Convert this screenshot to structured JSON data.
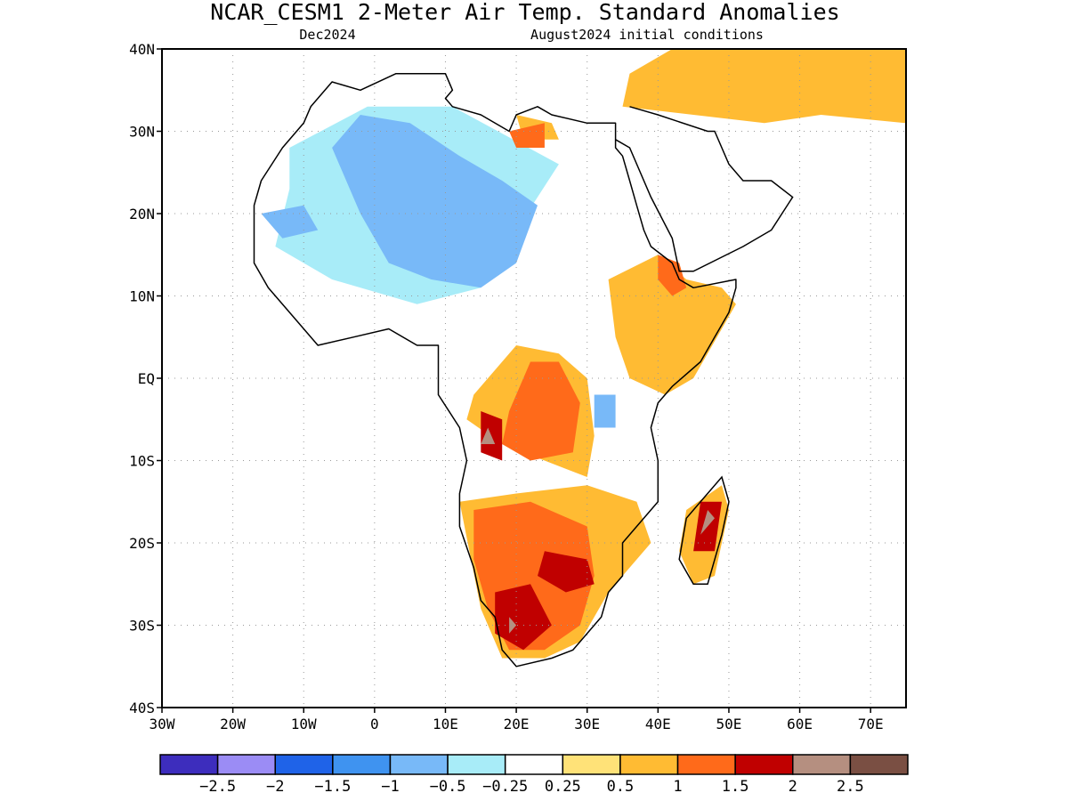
{
  "header": {
    "title": "NCAR_CESM1 2-Meter Air Temp. Standard Anomalies",
    "target_month": "Dec2024",
    "init_conditions": "August2024 initial conditions"
  },
  "map": {
    "extent": {
      "lon": [
        -30,
        75
      ],
      "lat": [
        -40,
        40
      ]
    },
    "lat_ticks": [
      {
        "v": 40,
        "label": "40N"
      },
      {
        "v": 30,
        "label": "30N"
      },
      {
        "v": 20,
        "label": "20N"
      },
      {
        "v": 10,
        "label": "10N"
      },
      {
        "v": 0,
        "label": "EQ"
      },
      {
        "v": -10,
        "label": "10S"
      },
      {
        "v": -20,
        "label": "20S"
      },
      {
        "v": -30,
        "label": "30S"
      },
      {
        "v": -40,
        "label": "40S"
      }
    ],
    "lon_ticks": [
      {
        "v": -30,
        "label": "30W"
      },
      {
        "v": -20,
        "label": "20W"
      },
      {
        "v": -10,
        "label": "10W"
      },
      {
        "v": 0,
        "label": "0"
      },
      {
        "v": 10,
        "label": "10E"
      },
      {
        "v": 20,
        "label": "20E"
      },
      {
        "v": 30,
        "label": "30E"
      },
      {
        "v": 40,
        "label": "40E"
      },
      {
        "v": 50,
        "label": "50E"
      },
      {
        "v": 60,
        "label": "60E"
      },
      {
        "v": 70,
        "label": "70E"
      }
    ],
    "gridlines": "dotted",
    "regions": [
      {
        "category": 5,
        "color": "#a8ecf8",
        "poly": [
          [
            -12,
            28
          ],
          [
            -1,
            33
          ],
          [
            11,
            33
          ],
          [
            26,
            26
          ],
          [
            20,
            18
          ],
          [
            15,
            11
          ],
          [
            6,
            9
          ],
          [
            -6,
            12
          ],
          [
            -14,
            16
          ],
          [
            -12,
            23
          ]
        ]
      },
      {
        "category": 4,
        "color": "#78b9f8",
        "poly": [
          [
            -6,
            28
          ],
          [
            -2,
            32
          ],
          [
            5,
            31
          ],
          [
            12,
            27
          ],
          [
            18,
            24
          ],
          [
            23,
            21
          ],
          [
            20,
            14
          ],
          [
            15,
            11
          ],
          [
            8,
            12
          ],
          [
            2,
            14
          ],
          [
            -2,
            20
          ]
        ]
      },
      {
        "category": 4,
        "color": "#78b9f8",
        "poly": [
          [
            -16,
            20
          ],
          [
            -10,
            21
          ],
          [
            -8,
            18
          ],
          [
            -13,
            17
          ]
        ]
      },
      {
        "category": 4,
        "color": "#78b9f8",
        "poly": [
          [
            31,
            -2
          ],
          [
            34,
            -2
          ],
          [
            34,
            -6
          ],
          [
            31,
            -6
          ]
        ]
      },
      {
        "category": 8,
        "color": "#ffbb33",
        "poly": [
          [
            14,
            -2
          ],
          [
            20,
            4
          ],
          [
            26,
            3
          ],
          [
            30,
            0
          ],
          [
            31,
            -7
          ],
          [
            30,
            -12
          ],
          [
            24,
            -10
          ],
          [
            18,
            -8
          ],
          [
            13,
            -5
          ]
        ]
      },
      {
        "category": 8,
        "color": "#ffbb33",
        "poly": [
          [
            33,
            12
          ],
          [
            40,
            15
          ],
          [
            44,
            12
          ],
          [
            49,
            11
          ],
          [
            51,
            9
          ],
          [
            45,
            0
          ],
          [
            41,
            -2
          ],
          [
            36,
            0
          ],
          [
            34,
            5
          ]
        ]
      },
      {
        "category": 8,
        "color": "#ffbb33",
        "poly": [
          [
            12,
            -15
          ],
          [
            20,
            -14
          ],
          [
            30,
            -13
          ],
          [
            37,
            -15
          ],
          [
            39,
            -20
          ],
          [
            33,
            -26
          ],
          [
            29,
            -32
          ],
          [
            24,
            -34
          ],
          [
            18,
            -34
          ],
          [
            15,
            -28
          ]
        ]
      },
      {
        "category": 8,
        "color": "#ffbb33",
        "poly": [
          [
            44,
            -16
          ],
          [
            49,
            -13
          ],
          [
            50,
            -16
          ],
          [
            48,
            -24
          ],
          [
            45,
            -25
          ],
          [
            43,
            -21
          ]
        ]
      },
      {
        "category": 8,
        "color": "#ffbb33",
        "poly": [
          [
            35,
            33
          ],
          [
            45,
            32
          ],
          [
            55,
            31
          ],
          [
            63,
            32
          ],
          [
            75,
            31
          ],
          [
            75,
            40
          ],
          [
            55,
            40
          ],
          [
            42,
            40
          ],
          [
            36,
            37
          ]
        ]
      },
      {
        "category": 8,
        "color": "#ffbb33",
        "poly": [
          [
            20,
            32
          ],
          [
            25,
            31
          ],
          [
            26,
            29
          ],
          [
            21,
            29
          ]
        ]
      },
      {
        "category": 9,
        "color": "#ff6a1a",
        "poly": [
          [
            19,
            -4
          ],
          [
            22,
            2
          ],
          [
            26,
            2
          ],
          [
            29,
            -3
          ],
          [
            28,
            -9
          ],
          [
            22,
            -10
          ],
          [
            18,
            -8
          ]
        ]
      },
      {
        "category": 9,
        "color": "#ff6a1a",
        "poly": [
          [
            14,
            -16
          ],
          [
            22,
            -15
          ],
          [
            30,
            -18
          ],
          [
            31,
            -24
          ],
          [
            29,
            -30
          ],
          [
            24,
            -33
          ],
          [
            19,
            -33
          ],
          [
            16,
            -28
          ],
          [
            14,
            -22
          ]
        ]
      },
      {
        "category": 9,
        "color": "#ff6a1a",
        "poly": [
          [
            40,
            15
          ],
          [
            43,
            14
          ],
          [
            44,
            11
          ],
          [
            42,
            10
          ],
          [
            40,
            12
          ]
        ]
      },
      {
        "category": 9,
        "color": "#ff6a1a",
        "poly": [
          [
            19,
            30
          ],
          [
            24,
            31
          ],
          [
            24,
            28
          ],
          [
            20,
            28
          ]
        ]
      },
      {
        "category": 10,
        "color": "#c00000",
        "poly": [
          [
            15,
            -4
          ],
          [
            18,
            -5
          ],
          [
            18,
            -10
          ],
          [
            15,
            -9
          ]
        ]
      },
      {
        "category": 10,
        "color": "#c00000",
        "poly": [
          [
            17,
            -26
          ],
          [
            22,
            -25
          ],
          [
            25,
            -30
          ],
          [
            21,
            -33
          ],
          [
            17,
            -31
          ]
        ]
      },
      {
        "category": 10,
        "color": "#c00000",
        "poly": [
          [
            24,
            -21
          ],
          [
            30,
            -22
          ],
          [
            31,
            -25
          ],
          [
            27,
            -26
          ],
          [
            23,
            -24
          ]
        ]
      },
      {
        "category": 10,
        "color": "#c00000",
        "poly": [
          [
            46,
            -15
          ],
          [
            49,
            -15
          ],
          [
            48,
            -21
          ],
          [
            45,
            -21
          ]
        ]
      },
      {
        "category": 11,
        "color": "#b58f80",
        "poly": [
          [
            16,
            -6
          ],
          [
            17,
            -8
          ],
          [
            15,
            -8
          ]
        ]
      },
      {
        "category": 11,
        "color": "#b58f80",
        "poly": [
          [
            47,
            -16
          ],
          [
            48,
            -17
          ],
          [
            46,
            -19
          ]
        ]
      },
      {
        "category": 11,
        "color": "#b58f80",
        "poly": [
          [
            19,
            -29
          ],
          [
            20,
            -30
          ],
          [
            19,
            -31
          ]
        ]
      }
    ],
    "coastline": [
      [
        -13,
        28
      ],
      [
        -10,
        31
      ],
      [
        -9,
        33
      ],
      [
        -6,
        36
      ],
      [
        -2,
        35
      ],
      [
        3,
        37
      ],
      [
        10,
        37
      ],
      [
        11,
        35
      ],
      [
        10,
        34
      ],
      [
        11,
        33
      ],
      [
        15,
        32
      ],
      [
        19,
        30
      ],
      [
        20,
        32
      ],
      [
        23,
        33
      ],
      [
        25,
        32
      ],
      [
        30,
        31
      ],
      [
        32,
        31
      ],
      [
        34,
        31
      ],
      [
        34,
        28
      ],
      [
        35,
        27
      ],
      [
        36,
        24
      ],
      [
        37,
        21
      ],
      [
        38,
        18
      ],
      [
        39,
        16
      ],
      [
        42,
        14
      ],
      [
        43,
        12
      ],
      [
        45,
        11
      ],
      [
        51,
        12
      ],
      [
        51,
        11
      ],
      [
        50,
        8
      ],
      [
        48,
        5
      ],
      [
        46,
        2
      ],
      [
        42,
        -1
      ],
      [
        40,
        -3
      ],
      [
        39,
        -6
      ],
      [
        40,
        -10
      ],
      [
        40,
        -15
      ],
      [
        37,
        -18
      ],
      [
        35,
        -20
      ],
      [
        35,
        -24
      ],
      [
        33,
        -26
      ],
      [
        32,
        -29
      ],
      [
        30,
        -31
      ],
      [
        28,
        -33
      ],
      [
        25,
        -34
      ],
      [
        20,
        -35
      ],
      [
        18,
        -33
      ],
      [
        17,
        -29
      ],
      [
        15,
        -27
      ],
      [
        14,
        -23
      ],
      [
        12,
        -18
      ],
      [
        12,
        -14
      ],
      [
        13,
        -10
      ],
      [
        12,
        -6
      ],
      [
        9,
        -2
      ],
      [
        9,
        4
      ],
      [
        6,
        4
      ],
      [
        2,
        6
      ],
      [
        -3,
        5
      ],
      [
        -8,
        4
      ],
      [
        -11,
        7
      ],
      [
        -15,
        11
      ],
      [
        -17,
        14
      ],
      [
        -17,
        21
      ],
      [
        -16,
        24
      ],
      [
        -13,
        28
      ]
    ],
    "madagascar": [
      [
        49,
        -12
      ],
      [
        50,
        -15
      ],
      [
        49,
        -19
      ],
      [
        47,
        -25
      ],
      [
        45,
        -25
      ],
      [
        43,
        -22
      ],
      [
        44,
        -17
      ],
      [
        46,
        -15
      ]
    ],
    "arabia": [
      [
        34,
        29
      ],
      [
        36,
        28
      ],
      [
        39,
        22
      ],
      [
        42,
        17
      ],
      [
        43,
        13
      ],
      [
        45,
        13
      ],
      [
        52,
        16
      ],
      [
        56,
        18
      ],
      [
        59,
        22
      ],
      [
        56,
        24
      ],
      [
        52,
        24
      ],
      [
        50,
        26
      ],
      [
        48,
        30
      ],
      [
        47,
        30
      ],
      [
        40,
        32
      ],
      [
        36,
        33
      ]
    ],
    "legend": {
      "colors": [
        "#3d2dbd",
        "#9b8cf5",
        "#1f63e8",
        "#3f93f0",
        "#78b9f8",
        "#a8ecf8",
        "#ffffff",
        "#ffe278",
        "#ffbb33",
        "#ff6a1a",
        "#c00000",
        "#b58f80",
        "#7a4f43"
      ],
      "labels": [
        "-2.5",
        "-2",
        "-1.5",
        "-1",
        "-0.5",
        "-0.25",
        "0.25",
        "0.5",
        "1",
        "1.5",
        "2",
        "2.5"
      ]
    }
  }
}
